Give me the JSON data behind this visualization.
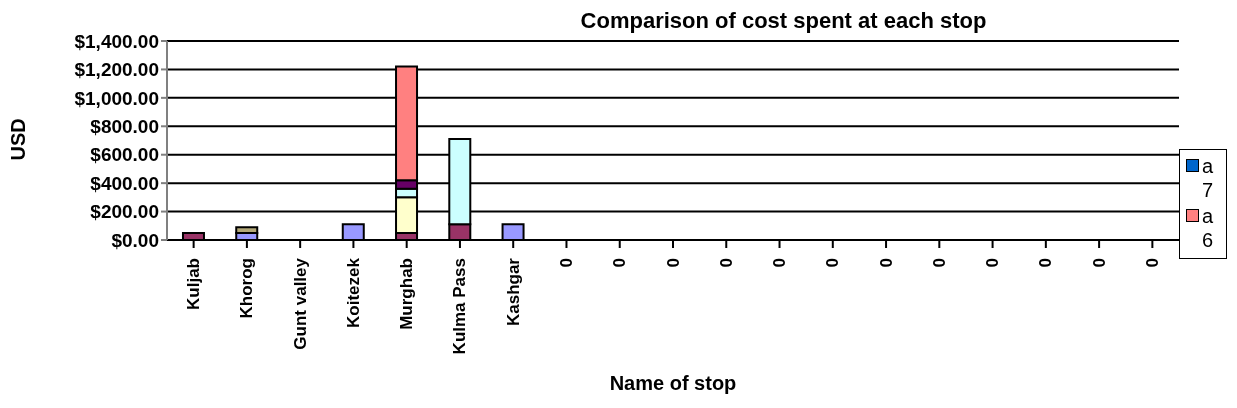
{
  "chart_data": {
    "type": "bar",
    "title": "Comparison of cost spent at each stop",
    "xlabel": "Name of stop",
    "ylabel": "USD",
    "categories": [
      "Kuljab",
      "Khorog",
      "Gunt valley",
      "Koitezek",
      "Murghab",
      "Kulma Pass",
      "Kashgar",
      "0",
      "0",
      "0",
      "0",
      "0",
      "0",
      "0",
      "0",
      "0",
      "0",
      "0",
      "0"
    ],
    "stacked": true,
    "grid": "y",
    "legend": "right",
    "ylim": [
      0,
      1400
    ],
    "yticks": [
      {
        "value": 0,
        "label": "$0.00"
      },
      {
        "value": 200,
        "label": "$200.00"
      },
      {
        "value": 400,
        "label": "$400.00"
      },
      {
        "value": 600,
        "label": "$600.00"
      },
      {
        "value": 800,
        "label": "$800.00"
      },
      {
        "value": 1000,
        "label": "$1,000.00"
      },
      {
        "value": 1200,
        "label": "$1,200.00"
      },
      {
        "value": 1400,
        "label": "$1,400.00"
      }
    ],
    "series": [
      {
        "color": "#993366",
        "values": [
          50,
          null,
          null,
          null,
          50,
          110,
          null,
          null,
          null,
          null,
          null,
          null,
          null,
          null,
          null,
          null,
          null,
          null,
          null
        ]
      },
      {
        "color": "#9999ff",
        "values": [
          null,
          50,
          null,
          110,
          null,
          null,
          110,
          null,
          null,
          null,
          null,
          null,
          null,
          null,
          null,
          null,
          null,
          null,
          null
        ]
      },
      {
        "color": "#b3a878",
        "values": [
          null,
          40,
          null,
          null,
          null,
          null,
          null,
          null,
          null,
          null,
          null,
          null,
          null,
          null,
          null,
          null,
          null,
          null,
          null
        ]
      },
      {
        "color": "#ffffcc",
        "values": [
          null,
          null,
          null,
          null,
          250,
          null,
          null,
          null,
          null,
          null,
          null,
          null,
          null,
          null,
          null,
          null,
          null,
          null,
          null
        ]
      },
      {
        "color": "#ccffff",
        "values": [
          null,
          null,
          null,
          null,
          60,
          600,
          null,
          null,
          null,
          null,
          null,
          null,
          null,
          null,
          null,
          null,
          null,
          null,
          null
        ]
      },
      {
        "color": "#660066",
        "values": [
          null,
          null,
          null,
          null,
          60,
          null,
          null,
          null,
          null,
          null,
          null,
          null,
          null,
          null,
          null,
          null,
          null,
          null,
          null
        ]
      },
      {
        "name": "a 7",
        "color": "#0066cc",
        "values": [
          null,
          null,
          null,
          null,
          null,
          null,
          null,
          null,
          null,
          null,
          null,
          null,
          null,
          null,
          null,
          null,
          null,
          null,
          null
        ]
      },
      {
        "name": "a 6",
        "color": "#ff8080",
        "values": [
          null,
          null,
          null,
          null,
          800,
          null,
          null,
          null,
          null,
          null,
          null,
          null,
          null,
          null,
          null,
          null,
          null,
          null,
          null
        ]
      }
    ]
  }
}
